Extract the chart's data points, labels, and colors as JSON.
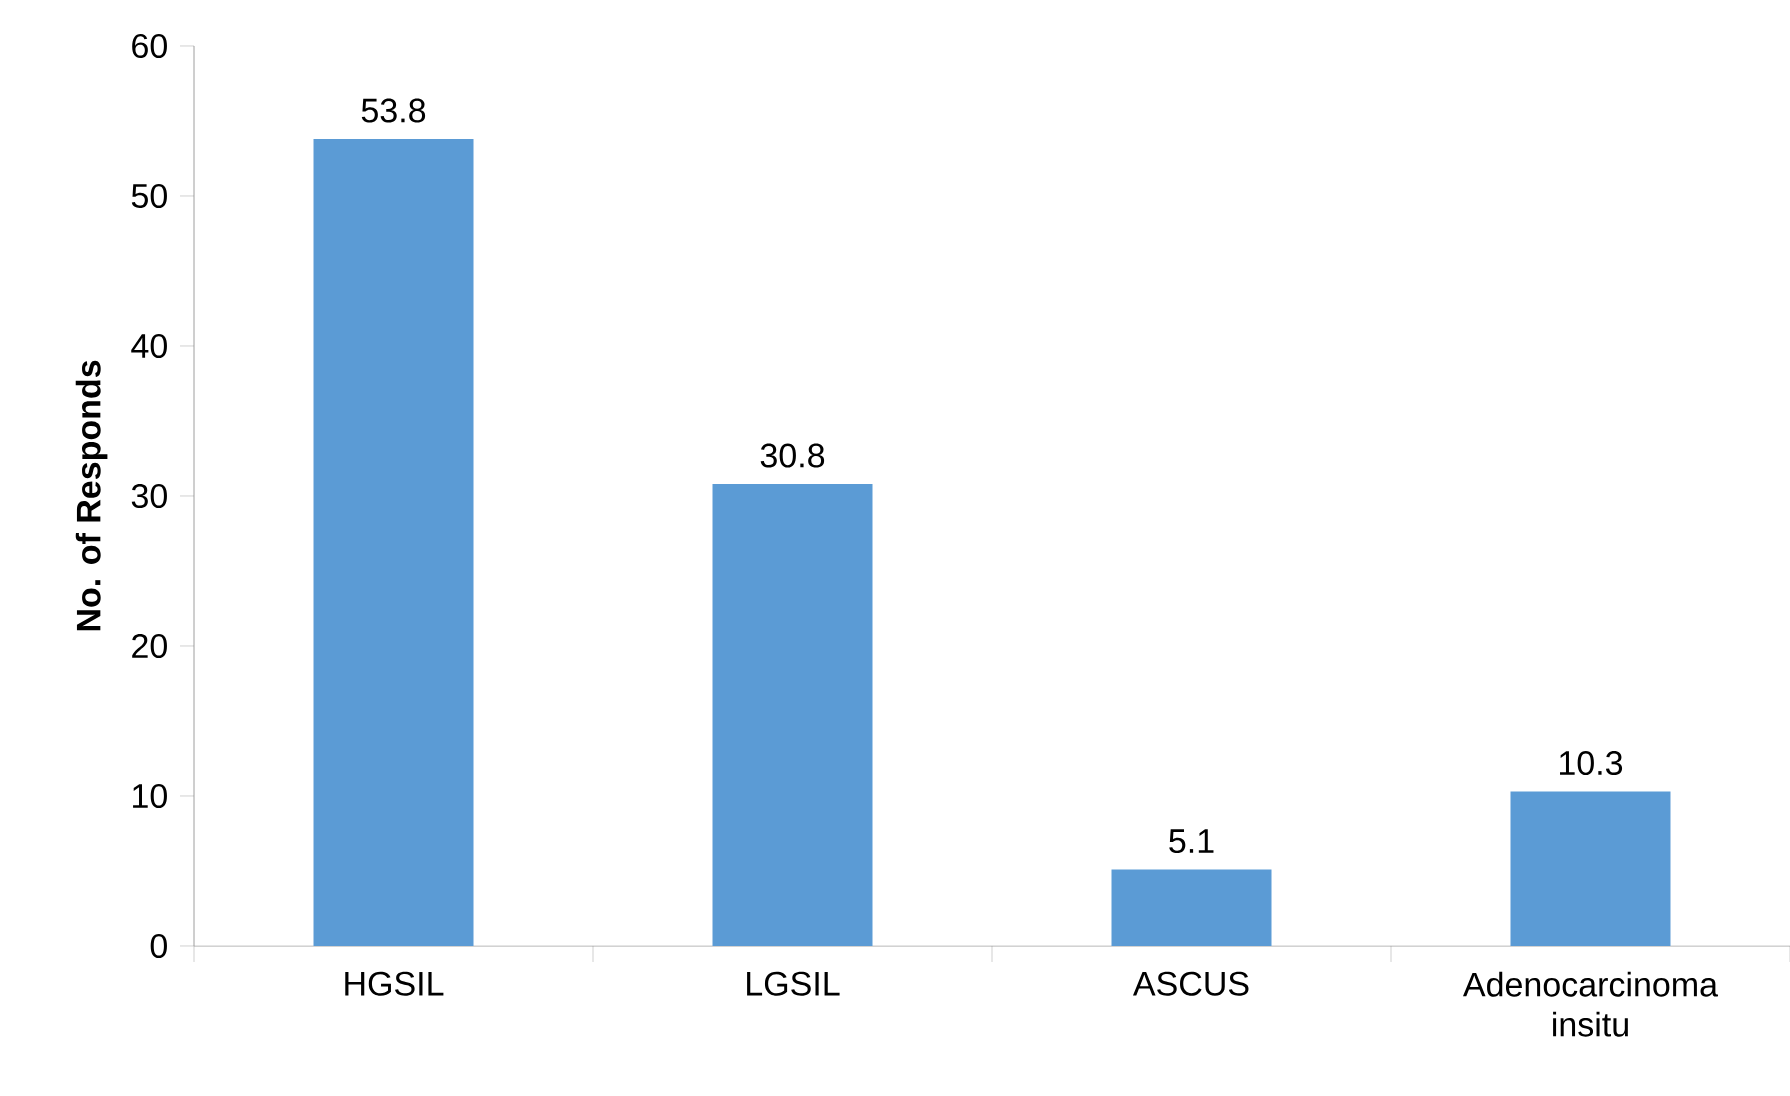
{
  "chart_data": {
    "type": "bar",
    "ylabel": "No. of Responds",
    "categories": [
      "HGSIL",
      "LGSIL",
      "ASCUS",
      "Adenocarcinoma insitu"
    ],
    "values": [
      53.8,
      30.8,
      5.1,
      10.3
    ],
    "color": "#5b9bd5",
    "ylim": [
      0,
      60
    ],
    "yticks": [
      0,
      10,
      20,
      30,
      40,
      50,
      60
    ],
    "data_labels": true
  }
}
